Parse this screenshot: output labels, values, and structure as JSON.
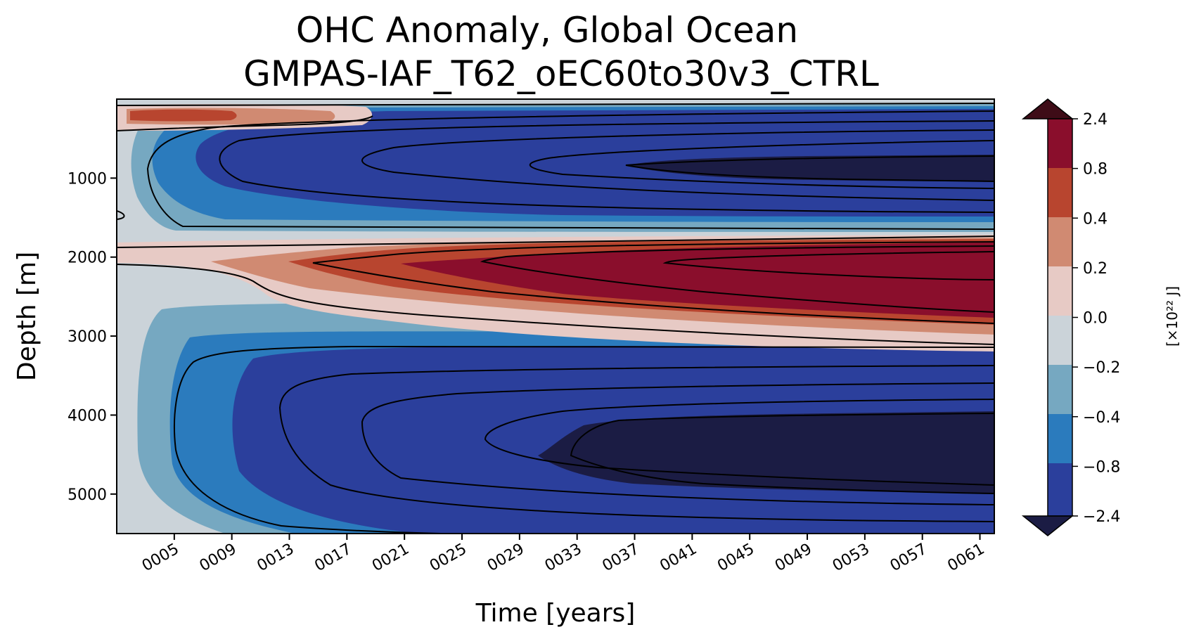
{
  "chart_data": {
    "type": "heatmap",
    "subtype": "filled-contour",
    "title_line1": "OHC Anomaly, Global Ocean",
    "title_line2": "GMPAS-IAF_T62_oEC60to30v3_CTRL",
    "xlabel": "Time [years]",
    "ylabel": "Depth [m]",
    "xlim": [
      1,
      62
    ],
    "ylim": [
      0,
      5500
    ],
    "x_ticks": [
      {
        "value": 5,
        "label": "0005"
      },
      {
        "value": 9,
        "label": "0009"
      },
      {
        "value": 13,
        "label": "0013"
      },
      {
        "value": 17,
        "label": "0017"
      },
      {
        "value": 21,
        "label": "0021"
      },
      {
        "value": 25,
        "label": "0025"
      },
      {
        "value": 29,
        "label": "0029"
      },
      {
        "value": 33,
        "label": "0033"
      },
      {
        "value": 37,
        "label": "0037"
      },
      {
        "value": 41,
        "label": "0041"
      },
      {
        "value": 45,
        "label": "0045"
      },
      {
        "value": 49,
        "label": "0049"
      },
      {
        "value": 53,
        "label": "0053"
      },
      {
        "value": 57,
        "label": "0057"
      },
      {
        "value": 61,
        "label": "0061"
      }
    ],
    "y_ticks": [
      {
        "value": 1000,
        "label": "1000"
      },
      {
        "value": 2000,
        "label": "2000"
      },
      {
        "value": 3000,
        "label": "3000"
      },
      {
        "value": 4000,
        "label": "4000"
      },
      {
        "value": 5000,
        "label": "5000"
      }
    ],
    "colorbar": {
      "label": "[×10²² J]",
      "tick_labels": [
        "2.4",
        "0.8",
        "0.4",
        "0.2",
        "0.0",
        "−0.2",
        "−0.4",
        "−0.8",
        "−2.4"
      ],
      "levels_colors": [
        {
          "range": "above 2.4",
          "color": "#3e0c17"
        },
        {
          "range": "0.8 to 2.4",
          "color": "#8a0e2c"
        },
        {
          "range": "0.4 to 0.8",
          "color": "#b8452f"
        },
        {
          "range": "0.2 to 0.4",
          "color": "#d08a72"
        },
        {
          "range": "0.0 to 0.2",
          "color": "#e7cac5"
        },
        {
          "range": "-0.2 to 0.0",
          "color": "#cbd3d9"
        },
        {
          "range": "-0.4 to -0.2",
          "color": "#76a8c1"
        },
        {
          "range": "-0.8 to -0.4",
          "color": "#2b7bbd"
        },
        {
          "range": "-2.4 to -0.8",
          "color": "#2b3f9c"
        },
        {
          "range": "below -2.4",
          "color": "#1b1c44"
        }
      ]
    },
    "features": [
      {
        "name": "surface-warm-band",
        "depth_range": [
          100,
          300
        ],
        "time_range": [
          1,
          13
        ],
        "level": "0.4 to 0.8"
      },
      {
        "name": "upper-cooling-lobe",
        "depth_range": [
          300,
          1700
        ],
        "time_range": [
          3,
          62
        ],
        "peak": "below -2.4",
        "peak_depth": 850
      },
      {
        "name": "mid-depth-warming-lobe",
        "depth_range": [
          1750,
          3200
        ],
        "time_range": [
          5,
          62
        ],
        "peak": "0.8 to 2.4",
        "peak_depth": 2150
      },
      {
        "name": "deep-cooling-lobe",
        "depth_range": [
          3100,
          5500
        ],
        "time_range": [
          2,
          62
        ],
        "peak": "below -2.4",
        "peak_depth": 4450
      }
    ]
  }
}
